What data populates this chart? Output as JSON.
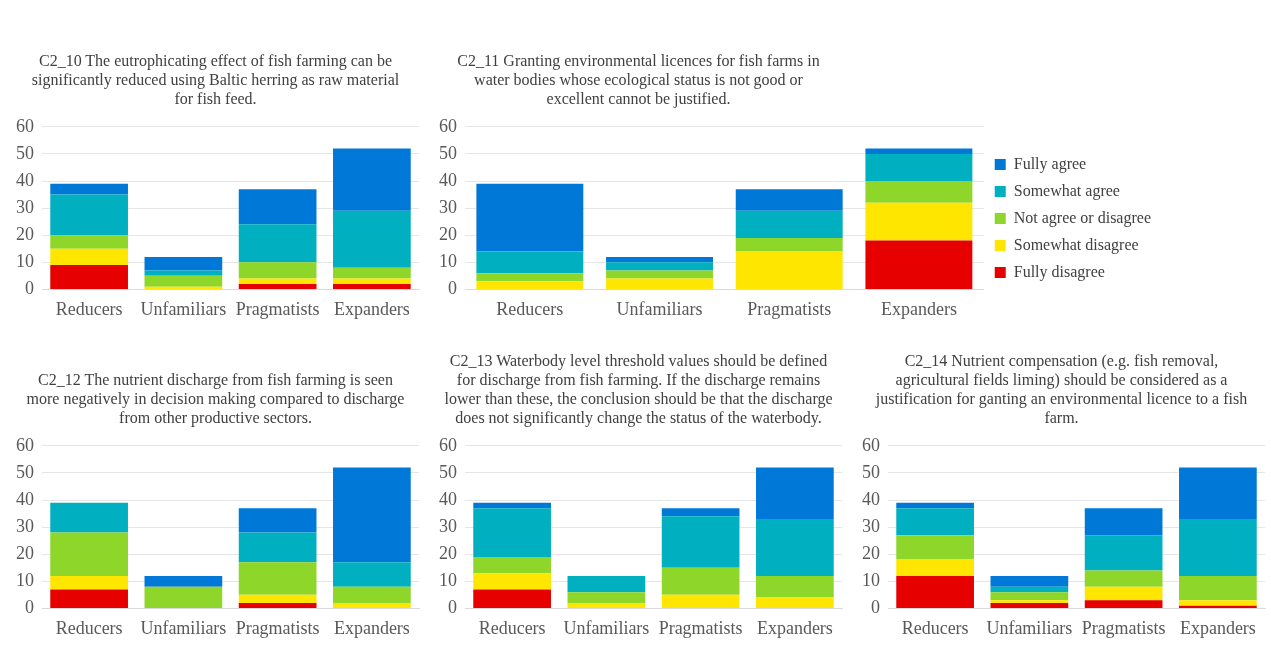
{
  "chart_data": [
    {
      "type": "bar",
      "title": "C2_10 The eutrophicating effect of fish farming can be significantly reduced using Baltic herring as raw material for fish feed.",
      "categories": [
        "Reducers",
        "Unfamiliars",
        "Pragmatists",
        "Expanders"
      ],
      "stacked": true,
      "ylim": [
        0,
        60
      ],
      "yticks": [
        0,
        10,
        20,
        30,
        40,
        50,
        60
      ],
      "grid": "y",
      "legend": false,
      "series": [
        {
          "color": "#e60000",
          "values": [
            9,
            0,
            2,
            2
          ]
        },
        {
          "color": "#ffe600",
          "values": [
            6,
            1,
            2,
            2
          ]
        },
        {
          "color": "#8fd62b",
          "values": [
            5,
            4,
            6,
            4
          ]
        },
        {
          "color": "#00b0c0",
          "values": [
            15,
            2,
            14,
            21
          ]
        },
        {
          "color": "#0078d7",
          "values": [
            4,
            5,
            13,
            23
          ]
        }
      ]
    },
    {
      "type": "bar",
      "title": "C2_11 Granting environmental licences for fish farms in water bodies whose ecological status is not good or excellent cannot be justified.",
      "categories": [
        "Reducers",
        "Unfamiliars",
        "Pragmatists",
        "Expanders"
      ],
      "stacked": true,
      "ylim": [
        0,
        60
      ],
      "yticks": [
        0,
        10,
        20,
        30,
        40,
        50,
        60
      ],
      "grid": "y",
      "legend": "right",
      "series": [
        {
          "name": "Fully disagree",
          "color": "#e60000",
          "values": [
            0,
            0,
            0,
            18
          ]
        },
        {
          "name": "Somewhat disagree",
          "color": "#ffe600",
          "values": [
            3,
            4,
            14,
            14
          ]
        },
        {
          "name": "Not agree or disagree",
          "color": "#8fd62b",
          "values": [
            3,
            3,
            5,
            8
          ]
        },
        {
          "name": "Somewhat agree",
          "color": "#00b0c0",
          "values": [
            8,
            3,
            10,
            10
          ]
        },
        {
          "name": "Fully agree",
          "color": "#0078d7",
          "values": [
            25,
            2,
            8,
            2
          ]
        }
      ]
    },
    {
      "type": "bar",
      "title": "C2_12 The nutrient discharge from fish farming is seen more negatively in decision making compared to discharge from other productive sectors.",
      "categories": [
        "Reducers",
        "Unfamiliars",
        "Pragmatists",
        "Expanders"
      ],
      "stacked": true,
      "ylim": [
        0,
        60
      ],
      "yticks": [
        0,
        10,
        20,
        30,
        40,
        50,
        60
      ],
      "grid": "y",
      "legend": false,
      "series": [
        {
          "color": "#e60000",
          "values": [
            7,
            0,
            2,
            0
          ]
        },
        {
          "color": "#ffe600",
          "values": [
            5,
            0,
            3,
            2
          ]
        },
        {
          "color": "#8fd62b",
          "values": [
            16,
            8,
            12,
            6
          ]
        },
        {
          "color": "#00b0c0",
          "values": [
            11,
            0,
            11,
            9
          ]
        },
        {
          "color": "#0078d7",
          "values": [
            0,
            4,
            9,
            35
          ]
        }
      ]
    },
    {
      "type": "bar",
      "title": "C2_13 Waterbody level threshold values should be defined for discharge from fish farming. If the discharge remains lower than these, the conclusion should be that the discharge does not significantly change the status of the waterbody.",
      "categories": [
        "Reducers",
        "Unfamiliars",
        "Pragmatists",
        "Expanders"
      ],
      "stacked": true,
      "ylim": [
        0,
        60
      ],
      "yticks": [
        0,
        10,
        20,
        30,
        40,
        50,
        60
      ],
      "grid": "y",
      "legend": false,
      "series": [
        {
          "color": "#e60000",
          "values": [
            7,
            0,
            0,
            0
          ]
        },
        {
          "color": "#ffe600",
          "values": [
            6,
            2,
            5,
            4
          ]
        },
        {
          "color": "#8fd62b",
          "values": [
            6,
            4,
            10,
            8
          ]
        },
        {
          "color": "#00b0c0",
          "values": [
            18,
            6,
            19,
            21
          ]
        },
        {
          "color": "#0078d7",
          "values": [
            2,
            0,
            3,
            19
          ]
        }
      ]
    },
    {
      "type": "bar",
      "title": "C2_14 Nutrient compensation (e.g. fish removal, agricultural fields liming) should be considered as a justification for ganting an environmental licence to a fish farm.",
      "categories": [
        "Reducers",
        "Unfamiliars",
        "Pragmatists",
        "Expanders"
      ],
      "stacked": true,
      "ylim": [
        0,
        60
      ],
      "yticks": [
        0,
        10,
        20,
        30,
        40,
        50,
        60
      ],
      "grid": "y",
      "legend": false,
      "series": [
        {
          "color": "#e60000",
          "values": [
            12,
            2,
            3,
            1
          ]
        },
        {
          "color": "#ffe600",
          "values": [
            6,
            1,
            5,
            2
          ]
        },
        {
          "color": "#8fd62b",
          "values": [
            9,
            3,
            6,
            9
          ]
        },
        {
          "color": "#00b0c0",
          "values": [
            10,
            2,
            13,
            21
          ]
        },
        {
          "color": "#0078d7",
          "values": [
            2,
            4,
            10,
            19
          ]
        }
      ]
    }
  ]
}
